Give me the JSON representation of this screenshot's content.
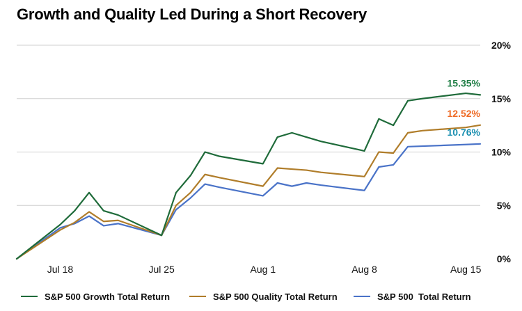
{
  "chart_data": {
    "type": "line",
    "title": "Growth and Quality Led During a Short Recovery",
    "xlabel": "",
    "ylabel": "",
    "ylim": [
      0,
      20
    ],
    "yticks": [
      "0%",
      "5%",
      "10%",
      "15%",
      "20%"
    ],
    "ytick_values": [
      0,
      5,
      10,
      15,
      20
    ],
    "y_axis_side": "right",
    "grid": "horizontal",
    "x_ticks": [
      {
        "date": "2022-07-18",
        "label": "Jul 18"
      },
      {
        "date": "2022-07-25",
        "label": "Jul 25"
      },
      {
        "date": "2022-08-01",
        "label": "Aug 1"
      },
      {
        "date": "2022-08-08",
        "label": "Aug 8"
      },
      {
        "date": "2022-08-15",
        "label": "Aug 15"
      }
    ],
    "x": [
      "2022-07-15",
      "2022-07-18",
      "2022-07-19",
      "2022-07-20",
      "2022-07-21",
      "2022-07-22",
      "2022-07-25",
      "2022-07-26",
      "2022-07-27",
      "2022-07-28",
      "2022-07-29",
      "2022-08-01",
      "2022-08-02",
      "2022-08-03",
      "2022-08-04",
      "2022-08-05",
      "2022-08-08",
      "2022-08-09",
      "2022-08-10",
      "2022-08-11",
      "2022-08-12",
      "2022-08-15",
      "2022-08-16"
    ],
    "series": [
      {
        "name": "S&P 500 Growth Total Return",
        "color": "#1f6b3a",
        "values": [
          0.0,
          3.2,
          4.5,
          6.2,
          4.5,
          4.1,
          2.2,
          6.2,
          7.8,
          10.0,
          9.6,
          8.9,
          11.4,
          11.8,
          11.4,
          11.0,
          10.1,
          13.1,
          12.5,
          14.8,
          15.0,
          15.5,
          15.35
        ],
        "end_label": "15.35%",
        "end_label_color": "#1e7d44"
      },
      {
        "name": "S&P 500 Quality Total Return",
        "color": "#b07d2a",
        "values": [
          0.0,
          2.7,
          3.4,
          4.4,
          3.5,
          3.6,
          2.2,
          5.0,
          6.2,
          7.9,
          7.6,
          6.8,
          8.5,
          8.4,
          8.3,
          8.1,
          7.7,
          10.0,
          9.9,
          11.8,
          12.0,
          12.3,
          12.52
        ],
        "end_label": "12.52%",
        "end_label_color": "#ee6a24"
      },
      {
        "name": "S&P 500  Total Return",
        "color": "#4a73c8",
        "values": [
          0.0,
          2.9,
          3.3,
          4.0,
          3.1,
          3.3,
          2.2,
          4.6,
          5.7,
          7.0,
          6.7,
          5.9,
          7.1,
          6.8,
          7.1,
          6.9,
          6.4,
          8.6,
          8.8,
          10.5,
          10.55,
          10.7,
          10.76
        ],
        "end_label": "10.76%",
        "end_label_color": "#1a8fb0"
      }
    ],
    "legend_position": "bottom"
  }
}
